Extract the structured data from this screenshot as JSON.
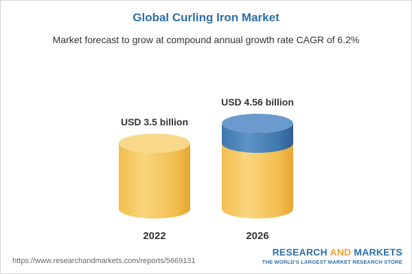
{
  "chart_data": {
    "type": "bar",
    "title": "Global Curling Iron Market",
    "subtitle": "Market forecast to grow at compound annual growth rate CAGR of 6.2%",
    "categories": [
      "2022",
      "2026"
    ],
    "values": [
      3.5,
      4.56
    ],
    "value_labels": [
      "USD 3.5 billion",
      "USD 4.56 billion"
    ],
    "unit": "USD billion",
    "xlabel": "",
    "ylabel": "",
    "grid": false,
    "colors": {
      "base": "#f5c55a",
      "base_dark": "#e9a93a",
      "base_top": "#f8d98a",
      "increase": "#4f86bd",
      "increase_dark": "#2f5f93",
      "increase_top": "#6a9bcc",
      "title": "#2b6fa8"
    }
  },
  "footer": {
    "url": "https://www.researchandmarkets.com/reports/5669131",
    "brand_part1": "RESEARCH ",
    "brand_part2": "AND",
    "brand_part3": " MARKETS",
    "tagline": "THE WORLD'S LARGEST MARKET RESEARCH STORE"
  }
}
